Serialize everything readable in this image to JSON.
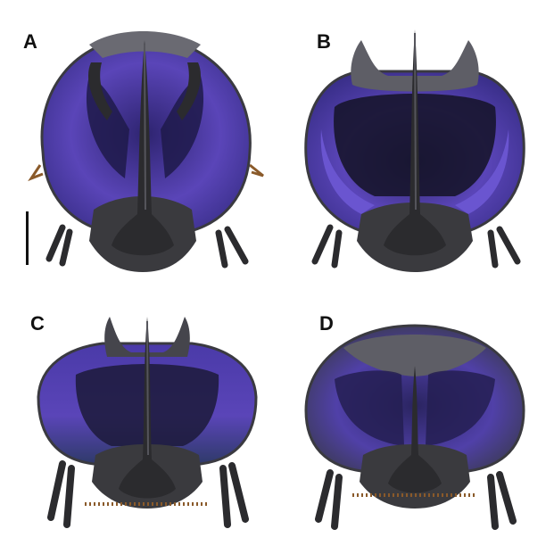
{
  "panels": [
    {
      "label": "A"
    },
    {
      "label": "B"
    },
    {
      "label": "C"
    },
    {
      "label": "D"
    }
  ],
  "colors": {
    "background": "#ffffff",
    "iridescent_violet": "#5a45b8",
    "violet_deep": "#2e2470",
    "horn_black": "#2b2b2e",
    "cuticle_gray": "#6a6a72",
    "setae_brown": "#8a5a2a"
  }
}
